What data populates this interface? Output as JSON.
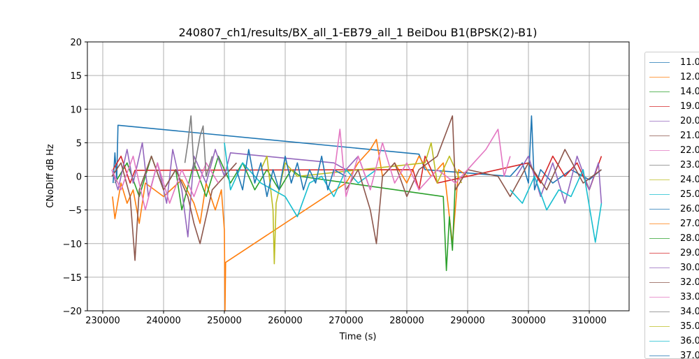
{
  "chart_data": {
    "type": "line",
    "title": "240807_ch1/results/BX_all_1-EB79_all_1 BeiDou B1(BPSK(2)-B1)",
    "xlabel": "Time (s)",
    "ylabel": "CNoDiff dB Hz",
    "xlim": [
      227470,
      316550
    ],
    "ylim": [
      -20,
      20
    ],
    "xticks": [
      230000,
      240000,
      250000,
      260000,
      270000,
      280000,
      290000,
      300000,
      310000
    ],
    "yticks": [
      -20,
      -15,
      -10,
      -5,
      0,
      5,
      10,
      15,
      20
    ],
    "grid": true,
    "legend_placement": "outside-right",
    "series": [
      {
        "name": "11.0",
        "color": "#1f77b4",
        "points": [
          [
            231700,
            -1
          ],
          [
            232000,
            3.5
          ],
          [
            232300,
            -0.5
          ],
          [
            232500,
            7.6
          ],
          [
            282000,
            3.3
          ],
          [
            283000,
            1
          ],
          [
            290000,
            0.5
          ],
          [
            297000,
            0
          ],
          [
            299000,
            2
          ],
          [
            300000,
            -1
          ],
          [
            300500,
            9
          ],
          [
            301000,
            -2
          ],
          [
            302000,
            1
          ],
          [
            304000,
            -1
          ],
          [
            307000,
            1
          ],
          [
            310000,
            -0.5
          ],
          [
            312000,
            1
          ]
        ]
      },
      {
        "name": "12.0",
        "color": "#ff7f0e",
        "points": [
          [
            231600,
            -3
          ],
          [
            232000,
            -6.3
          ],
          [
            233000,
            -1
          ],
          [
            234000,
            -4
          ],
          [
            235000,
            -2
          ],
          [
            236000,
            -7
          ],
          [
            237000,
            -1
          ],
          [
            240000,
            -3
          ],
          [
            243000,
            -0.5
          ],
          [
            245000,
            -4
          ],
          [
            246000,
            -7
          ],
          [
            247000,
            -1
          ],
          [
            248500,
            -5
          ],
          [
            249500,
            -2
          ],
          [
            250000,
            -8
          ],
          [
            250100,
            -20
          ],
          [
            250200,
            -12.8
          ],
          [
            270000,
            -1
          ],
          [
            272000,
            2
          ],
          [
            274000,
            4
          ],
          [
            275000,
            5.5
          ],
          [
            276000,
            0
          ],
          [
            278000,
            2
          ],
          [
            280000,
            -1
          ],
          [
            282000,
            3
          ],
          [
            284000,
            0
          ],
          [
            286000,
            2
          ],
          [
            287500,
            -10
          ],
          [
            288500,
            1
          ],
          [
            290000,
            0
          ]
        ]
      },
      {
        "name": "14.0",
        "color": "#2ca02c",
        "points": [
          [
            232000,
            -1
          ],
          [
            234000,
            2
          ],
          [
            236000,
            -3
          ],
          [
            238000,
            3
          ],
          [
            240000,
            -2
          ],
          [
            242000,
            1
          ],
          [
            243000,
            -5
          ],
          [
            245000,
            2
          ],
          [
            247000,
            -3
          ],
          [
            249000,
            3
          ],
          [
            251000,
            -1
          ],
          [
            253000,
            2
          ],
          [
            255000,
            -2
          ],
          [
            257000,
            1
          ],
          [
            259000,
            -2
          ],
          [
            261000,
            1
          ],
          [
            262500,
            0
          ],
          [
            286000,
            -3
          ],
          [
            286500,
            -14
          ],
          [
            287000,
            -6
          ],
          [
            287500,
            -11
          ],
          [
            288000,
            0
          ]
        ]
      },
      {
        "name": "19.0",
        "color": "#d62728",
        "points": [
          [
            231700,
            1
          ],
          [
            233000,
            3
          ],
          [
            234500,
            -1
          ],
          [
            235300,
            0.9
          ],
          [
            281000,
            1
          ],
          [
            282000,
            -2
          ],
          [
            283000,
            3
          ],
          [
            285000,
            -1
          ],
          [
            300000,
            2
          ],
          [
            302000,
            -1
          ],
          [
            304000,
            3
          ],
          [
            306000,
            0
          ],
          [
            308000,
            2
          ],
          [
            310000,
            -2
          ],
          [
            312000,
            3
          ]
        ]
      },
      {
        "name": "20.0",
        "color": "#9467bd",
        "points": [
          [
            231500,
            1
          ],
          [
            232500,
            -2
          ],
          [
            234000,
            4
          ],
          [
            235000,
            -1
          ],
          [
            236500,
            5
          ],
          [
            237500,
            -3
          ],
          [
            239000,
            2
          ],
          [
            240500,
            -4
          ],
          [
            241500,
            4
          ],
          [
            243000,
            -2
          ],
          [
            244000,
            -9
          ],
          [
            245000,
            3
          ],
          [
            247000,
            -1
          ],
          [
            248500,
            4
          ],
          [
            250000,
            0
          ],
          [
            251000,
            3.5
          ],
          [
            268000,
            2
          ],
          [
            270000,
            1
          ],
          [
            272000,
            3
          ],
          [
            274000,
            -2
          ]
        ]
      },
      {
        "name": "21.0",
        "color": "#8c564b",
        "points": [
          [
            231500,
            0
          ],
          [
            233000,
            2
          ],
          [
            234500,
            -3
          ],
          [
            235300,
            -12.5
          ],
          [
            236000,
            -2
          ],
          [
            238000,
            3
          ],
          [
            240000,
            -2
          ],
          [
            242000,
            1
          ],
          [
            244000,
            -3
          ],
          [
            245000,
            -7
          ],
          [
            246000,
            -10
          ],
          [
            247000,
            -6
          ],
          [
            248000,
            -2
          ],
          [
            250000,
            0
          ],
          [
            252000,
            2
          ]
        ]
      },
      {
        "name": "22.0",
        "color": "#e377c2",
        "points": [
          [
            231500,
            1
          ],
          [
            233000,
            -2
          ],
          [
            235000,
            3
          ],
          [
            237000,
            -5
          ],
          [
            239000,
            2
          ],
          [
            241000,
            -4
          ],
          [
            243000,
            1
          ],
          [
            245000,
            -3
          ],
          [
            247000,
            2
          ],
          [
            249000,
            -1
          ]
        ]
      },
      {
        "name": "23.0",
        "color": "#7f7f7f",
        "points": [
          [
            243500,
            2
          ],
          [
            244000,
            5
          ],
          [
            244500,
            9
          ],
          [
            245000,
            1
          ],
          [
            246000,
            6
          ],
          [
            246500,
            7.5
          ],
          [
            247000,
            0
          ],
          [
            248000,
            3
          ]
        ]
      },
      {
        "name": "24.0",
        "color": "#bcbd22",
        "points": [
          [
            256000,
            1
          ],
          [
            257000,
            3
          ],
          [
            258000,
            -5
          ],
          [
            258200,
            -13
          ],
          [
            258500,
            -4
          ],
          [
            260000,
            2
          ],
          [
            262000,
            0
          ],
          [
            283000,
            2
          ],
          [
            284000,
            5
          ],
          [
            285000,
            -1
          ],
          [
            287000,
            3
          ],
          [
            289000,
            -1
          ]
        ]
      },
      {
        "name": "25.0",
        "color": "#17becf",
        "points": [
          [
            250000,
            5
          ],
          [
            251000,
            -2
          ],
          [
            253000,
            2
          ],
          [
            256000,
            -1
          ],
          [
            260000,
            -3
          ],
          [
            262000,
            -6
          ],
          [
            264000,
            -1
          ],
          [
            266000,
            0
          ],
          [
            268000,
            -3
          ],
          [
            270000,
            1
          ],
          [
            272000,
            -1
          ],
          [
            275000,
            1
          ]
        ]
      },
      {
        "name": "26.0",
        "color": "#1f77b4",
        "points": [
          [
            252000,
            1
          ],
          [
            253000,
            -2
          ],
          [
            254000,
            4
          ],
          [
            255000,
            -1
          ],
          [
            256000,
            2
          ],
          [
            257000,
            -3
          ],
          [
            258000,
            1
          ],
          [
            259000,
            -2
          ],
          [
            260000,
            3
          ],
          [
            261000,
            -1
          ],
          [
            262000,
            2
          ],
          [
            263000,
            -2
          ],
          [
            264000,
            1
          ],
          [
            265000,
            -1
          ],
          [
            266000,
            3
          ],
          [
            267000,
            -2
          ],
          [
            268000,
            1
          ],
          [
            270000,
            0
          ]
        ]
      },
      {
        "name": "27.0",
        "color": "#ff7f0e",
        "points": []
      },
      {
        "name": "28.0",
        "color": "#2ca02c",
        "points": []
      },
      {
        "name": "29.0",
        "color": "#d62728",
        "points": []
      },
      {
        "name": "30.0",
        "color": "#9467bd",
        "points": [
          [
            298000,
            0
          ],
          [
            300000,
            3
          ],
          [
            302000,
            -3
          ],
          [
            304000,
            2
          ],
          [
            306000,
            -4
          ],
          [
            308000,
            3
          ],
          [
            310000,
            -2
          ],
          [
            311500,
            2
          ],
          [
            312000,
            -4
          ]
        ]
      },
      {
        "name": "32.0",
        "color": "#8c564b",
        "points": [
          [
            270000,
            -2
          ],
          [
            272000,
            1
          ],
          [
            274000,
            -5
          ],
          [
            275000,
            -10
          ],
          [
            276000,
            0
          ],
          [
            278000,
            2
          ],
          [
            280000,
            -3
          ],
          [
            282000,
            1
          ],
          [
            285000,
            3
          ],
          [
            287500,
            9
          ],
          [
            288000,
            -2
          ],
          [
            290000,
            1
          ],
          [
            295000,
            0
          ],
          [
            297000,
            -3
          ],
          [
            300000,
            2
          ],
          [
            303000,
            -2
          ],
          [
            306000,
            4
          ],
          [
            309000,
            -1
          ],
          [
            312000,
            1
          ]
        ]
      },
      {
        "name": "33.0",
        "color": "#e377c2",
        "points": [
          [
            268000,
            0
          ],
          [
            269000,
            7
          ],
          [
            270000,
            -3
          ],
          [
            272000,
            3
          ],
          [
            274000,
            -2
          ],
          [
            276000,
            5
          ],
          [
            278000,
            -1
          ],
          [
            280000,
            2
          ],
          [
            282000,
            -2
          ],
          [
            285000,
            1
          ],
          [
            288000,
            -1
          ],
          [
            291000,
            2
          ],
          [
            293000,
            4
          ],
          [
            295000,
            7
          ],
          [
            296000,
            0
          ],
          [
            297000,
            3
          ]
        ]
      },
      {
        "name": "34.0",
        "color": "#7f7f7f",
        "points": []
      },
      {
        "name": "35.0",
        "color": "#bcbd22",
        "points": []
      },
      {
        "name": "36.0",
        "color": "#17becf",
        "points": [
          [
            297000,
            -2
          ],
          [
            299000,
            -4
          ],
          [
            301000,
            0
          ],
          [
            303000,
            -5
          ],
          [
            305000,
            -2
          ],
          [
            307000,
            -3
          ],
          [
            309000,
            1
          ],
          [
            311000,
            -9.8
          ],
          [
            312000,
            -4
          ]
        ]
      },
      {
        "name": "37.0",
        "color": "#1f77b4",
        "points": []
      }
    ]
  }
}
